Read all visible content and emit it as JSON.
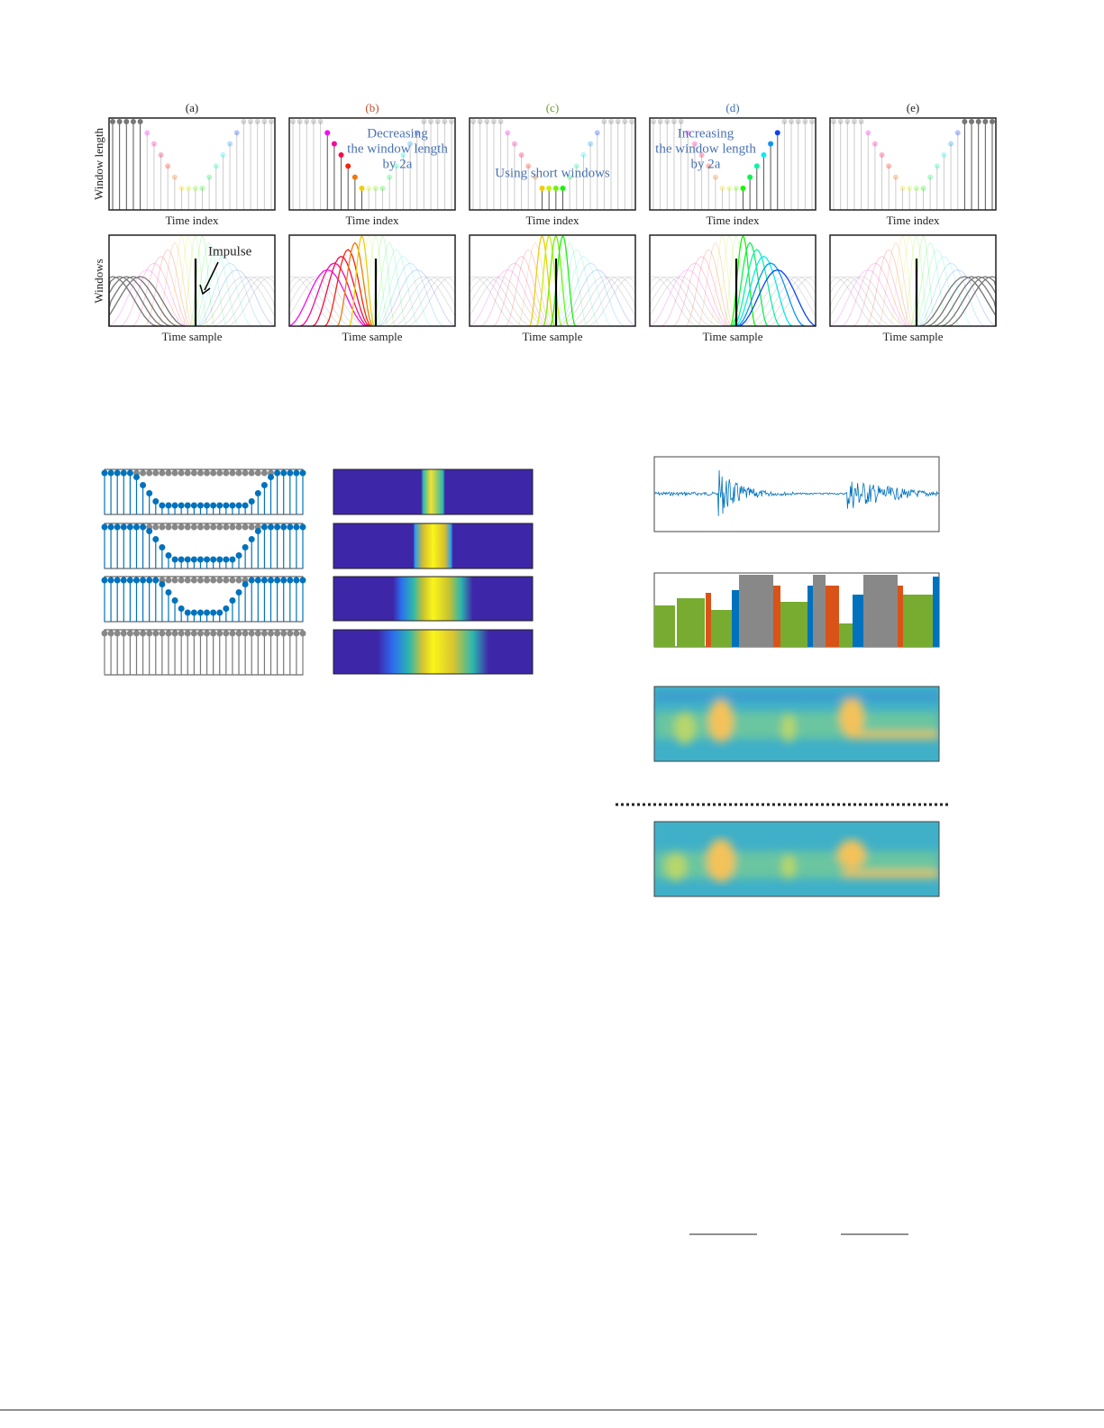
{
  "figure": {
    "panels": [
      {
        "label": "(a)",
        "x_label_top": "Time index",
        "x_label_bottom": "Time sample"
      },
      {
        "label": "(b)",
        "x_label_top": "Time index",
        "x_label_bottom": "Time sample"
      },
      {
        "label": "(c)",
        "x_label_top": "Time index",
        "x_label_bottom": "Time sample"
      },
      {
        "label": "(d)",
        "x_label_top": "Time index",
        "x_label_bottom": "Time sample"
      },
      {
        "label": "(e)",
        "x_label_top": "Time index",
        "x_label_bottom": "Time sample"
      }
    ],
    "y_label_top": "Window length",
    "y_label_bottom": "Windows",
    "annotations": {
      "impulse": "Impulse",
      "decreasing": [
        "Decreasing",
        "the window length",
        "by 2a"
      ],
      "short": "Using short windows",
      "increasing": [
        "Increasing",
        "the window length",
        "by 2a"
      ]
    }
  }
}
